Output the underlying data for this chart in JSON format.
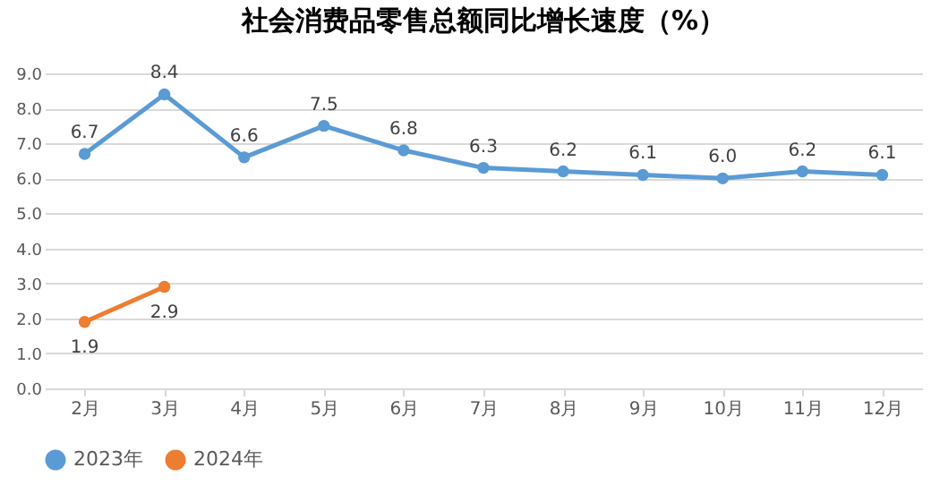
{
  "chart_data": {
    "type": "line",
    "title": "社会消费品零售总额同比增长速度（%）",
    "categories": [
      "2月",
      "3月",
      "4月",
      "5月",
      "6月",
      "7月",
      "8月",
      "9月",
      "10月",
      "11月",
      "12月"
    ],
    "series": [
      {
        "name": "2023年",
        "color": "#5b9bd5",
        "values": [
          6.7,
          8.4,
          6.6,
          7.5,
          6.8,
          6.3,
          6.2,
          6.1,
          6.0,
          6.2,
          6.1
        ],
        "value_labels": [
          "6.7",
          "8.4",
          "6.6",
          "7.5",
          "6.8",
          "6.3",
          "6.2",
          "6.1",
          "6.0",
          "6.2",
          "6.1"
        ]
      },
      {
        "name": "2024年",
        "color": "#ed7d31",
        "values": [
          1.9,
          2.9,
          null,
          null,
          null,
          null,
          null,
          null,
          null,
          null,
          null
        ],
        "value_labels": [
          "1.9",
          "2.9",
          null,
          null,
          null,
          null,
          null,
          null,
          null,
          null,
          null
        ]
      }
    ],
    "ylim": [
      0,
      9
    ],
    "yticks": [
      {
        "value": 0,
        "label": "0.0"
      },
      {
        "value": 1,
        "label": "1.0"
      },
      {
        "value": 2,
        "label": "2.0"
      },
      {
        "value": 3,
        "label": "3.0"
      },
      {
        "value": 4,
        "label": "4.0"
      },
      {
        "value": 5,
        "label": "5.0"
      },
      {
        "value": 6,
        "label": "6.0"
      },
      {
        "value": 7,
        "label": "7.0"
      },
      {
        "value": 8,
        "label": "8.0"
      },
      {
        "value": 9,
        "label": "9.0"
      }
    ],
    "grid": "y",
    "legend": "bottom",
    "marker": "circle",
    "line_style": "solid"
  }
}
